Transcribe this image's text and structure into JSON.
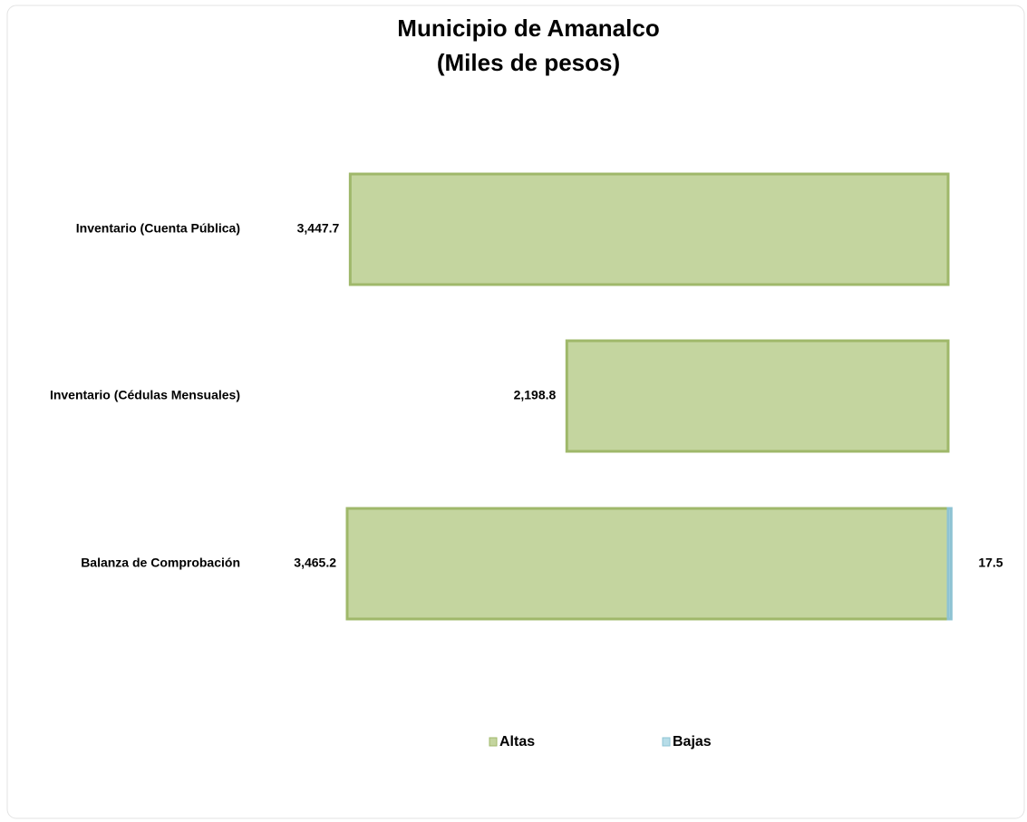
{
  "chart_data": {
    "type": "diverging-bar",
    "title": [
      "Municipio de Amanalco",
      "(Miles de pesos)"
    ],
    "categories": [
      "Inventario (Cuenta Pública)",
      "Inventario (Cédulas Mensuales)",
      "Balanza de Comprobación"
    ],
    "series": [
      {
        "name": "Altas",
        "color": "#c4d59f",
        "values": [
          3447.7,
          2198.8,
          3465.2
        ],
        "value_labels": [
          "3,447.7",
          "2,198.8",
          "3,465.2"
        ]
      },
      {
        "name": "Bajas",
        "color": "#b7dde8",
        "values": [
          null,
          null,
          17.5
        ]
      }
    ],
    "legend": "bottom"
  }
}
